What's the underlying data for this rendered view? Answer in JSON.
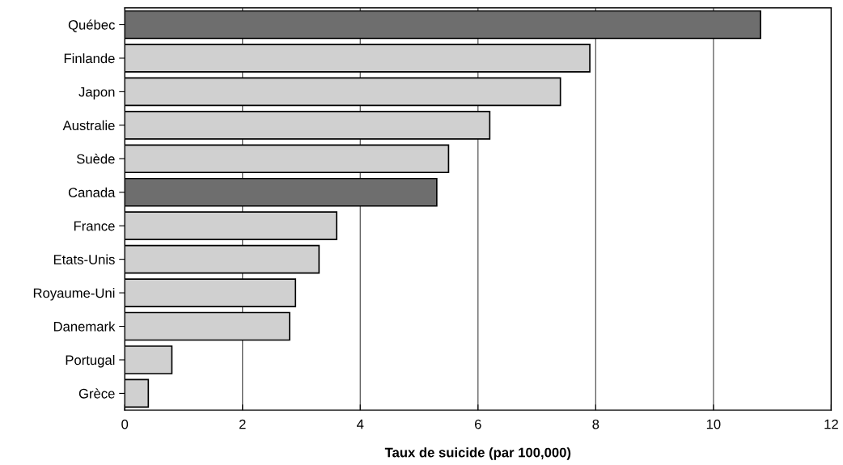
{
  "chart_data": {
    "type": "bar",
    "orientation": "horizontal",
    "xlabel": "Taux de suicide (par 100,000)",
    "categories": [
      "Québec",
      "Finlande",
      "Japon",
      "Australie",
      "Suède",
      "Canada",
      "France",
      "Etats-Unis",
      "Royaume-Uni",
      "Danemark",
      "Portugal",
      "Grèce"
    ],
    "values": [
      10.8,
      7.9,
      7.4,
      6.2,
      5.5,
      5.3,
      3.6,
      3.3,
      2.9,
      2.8,
      0.8,
      0.4
    ],
    "colors": [
      "#6e6e6e",
      "#d0d0d0",
      "#d0d0d0",
      "#d0d0d0",
      "#d0d0d0",
      "#6e6e6e",
      "#d0d0d0",
      "#d0d0d0",
      "#d0d0d0",
      "#d0d0d0",
      "#d0d0d0",
      "#d0d0d0"
    ],
    "xlim": [
      0,
      12
    ],
    "xticks": [
      0,
      2,
      4,
      6,
      8,
      10,
      12
    ],
    "grid": "x"
  }
}
